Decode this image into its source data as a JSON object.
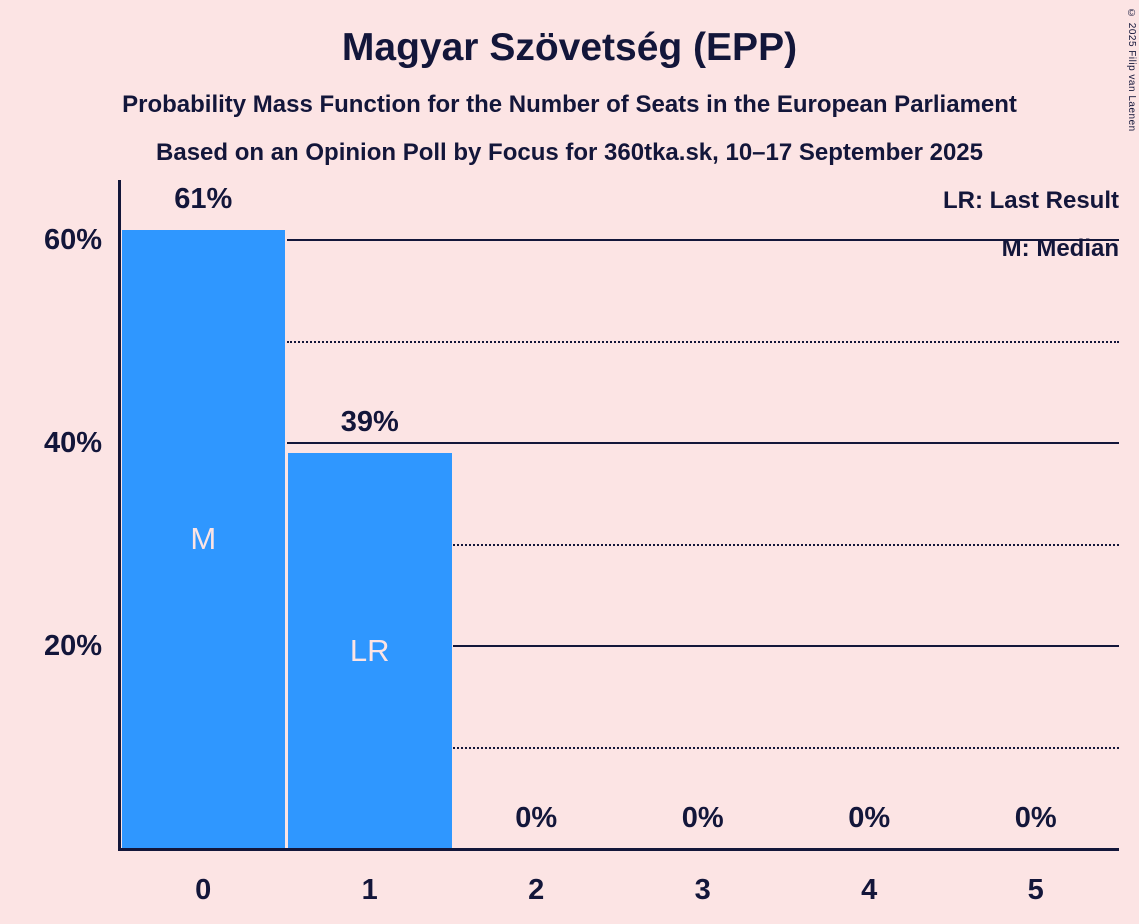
{
  "title": "Magyar Szövetség (EPP)",
  "subtitle1": "Probability Mass Function for the Number of Seats in the European Parliament",
  "subtitle2": "Based on an Opinion Poll by Focus for 360tka.sk, 10–17 September 2025",
  "legend": {
    "lr": "LR: Last Result",
    "m": "M: Median"
  },
  "copyright": "© 2025 Filip van Laenen",
  "colors": {
    "background": "#fce4e4",
    "bar": "#2f97ff",
    "text": "#13163a",
    "bar_inner_label": "#fce4e4"
  },
  "chart_data": {
    "type": "bar",
    "title": "Magyar Szövetség (EPP)",
    "categories": [
      "0",
      "1",
      "2",
      "3",
      "4",
      "5"
    ],
    "values": [
      61,
      39,
      0,
      0,
      0,
      0
    ],
    "value_labels": [
      "61%",
      "39%",
      "0%",
      "0%",
      "0%",
      "0%"
    ],
    "bar_annotations": [
      {
        "index": 0,
        "label": "M"
      },
      {
        "index": 1,
        "label": "LR"
      }
    ],
    "xlabel": "",
    "ylabel": "",
    "ytick_values": [
      20,
      40,
      60
    ],
    "ytick_labels": [
      "20%",
      "40%",
      "60%"
    ],
    "solid_gridlines": [
      20,
      40,
      60
    ],
    "dotted_gridlines": [
      10,
      30,
      50
    ],
    "ylim": [
      0,
      66
    ],
    "legend_position": "top-right",
    "grid": "horizontal"
  }
}
